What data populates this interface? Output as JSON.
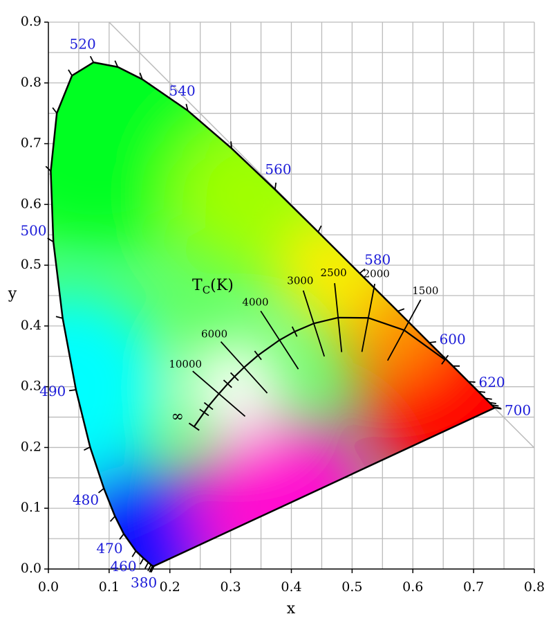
{
  "chart_data": {
    "type": "chromaticity",
    "x_label": "x",
    "y_label": "y",
    "xlim": [
      0,
      0.8
    ],
    "ylim": [
      0,
      0.9
    ],
    "xticks": [
      {
        "value": 0,
        "label": "0.0"
      },
      {
        "value": 0.1,
        "label": "0.1"
      },
      {
        "value": 0.2,
        "label": "0.2"
      },
      {
        "value": 0.3,
        "label": "0.3"
      },
      {
        "value": 0.4,
        "label": "0.4"
      },
      {
        "value": 0.5,
        "label": "0.5"
      },
      {
        "value": 0.6,
        "label": "0.6"
      },
      {
        "value": 0.7,
        "label": "0.7"
      },
      {
        "value": 0.8,
        "label": "0.8"
      }
    ],
    "yticks": [
      {
        "value": 0,
        "label": "0.0"
      },
      {
        "value": 0.1,
        "label": "0.1"
      },
      {
        "value": 0.2,
        "label": "0.2"
      },
      {
        "value": 0.3,
        "label": "0.3"
      },
      {
        "value": 0.4,
        "label": "0.4"
      },
      {
        "value": 0.5,
        "label": "0.5"
      },
      {
        "value": 0.6,
        "label": "0.6"
      },
      {
        "value": 0.7,
        "label": "0.7"
      },
      {
        "value": 0.8,
        "label": "0.8"
      },
      {
        "value": 0.9,
        "label": "0.9"
      }
    ],
    "grid": true,
    "grid_step": 0.05,
    "grid_color": "#bbbbbb",
    "spectral_locus": {
      "color": "#000000",
      "wavelengths": [
        380,
        400,
        420,
        430,
        440,
        450,
        460,
        470,
        475,
        480,
        485,
        490,
        495,
        500,
        505,
        510,
        515,
        520,
        525,
        530,
        540,
        550,
        560,
        570,
        580,
        590,
        600,
        610,
        620,
        630,
        640,
        650,
        660,
        680,
        700
      ],
      "x": [
        0.1741,
        0.1733,
        0.1714,
        0.1689,
        0.1644,
        0.1566,
        0.144,
        0.1241,
        0.1096,
        0.0913,
        0.0687,
        0.0454,
        0.0235,
        0.0082,
        0.0039,
        0.0139,
        0.0389,
        0.0743,
        0.1142,
        0.1547,
        0.2296,
        0.3016,
        0.3731,
        0.4441,
        0.5125,
        0.5752,
        0.627,
        0.6658,
        0.6915,
        0.7079,
        0.719,
        0.726,
        0.73,
        0.7334,
        0.7347
      ],
      "y": [
        0.005,
        0.0048,
        0.0051,
        0.0069,
        0.0109,
        0.0177,
        0.0297,
        0.0578,
        0.0868,
        0.1327,
        0.2007,
        0.295,
        0.4127,
        0.5384,
        0.6548,
        0.7502,
        0.812,
        0.8338,
        0.8262,
        0.8059,
        0.7543,
        0.6923,
        0.6245,
        0.5547,
        0.4866,
        0.4242,
        0.3725,
        0.334,
        0.3083,
        0.292,
        0.2809,
        0.274,
        0.27,
        0.2666,
        0.2653
      ]
    },
    "wavelength_labels": [
      380,
      460,
      470,
      480,
      490,
      500,
      520,
      540,
      560,
      580,
      600,
      620,
      700
    ],
    "wavelength_label_color": "#1c1cd8",
    "planckian_title": {
      "main": "T",
      "sub": "C",
      "unit": "(K)"
    },
    "planckian_locus": {
      "color": "#000000",
      "temperatures": [
        1000,
        1500,
        2000,
        2500,
        3000,
        3500,
        4000,
        5000,
        6000,
        7000,
        8000,
        10000,
        15000,
        20000
      ],
      "x": [
        0.6528,
        0.5857,
        0.5267,
        0.477,
        0.4369,
        0.4053,
        0.3805,
        0.3451,
        0.3221,
        0.3064,
        0.2952,
        0.2807,
        0.2637,
        0.2565
      ],
      "y": [
        0.3444,
        0.3931,
        0.4133,
        0.4137,
        0.4041,
        0.3907,
        0.3768,
        0.3516,
        0.3318,
        0.3166,
        0.3048,
        0.2884,
        0.2682,
        0.2577
      ],
      "labeled": [
        1500,
        2000,
        2500,
        3000,
        4000,
        6000,
        10000
      ],
      "infinity": {
        "x": 0.2399,
        "y": 0.2342,
        "label": "∞"
      }
    }
  }
}
